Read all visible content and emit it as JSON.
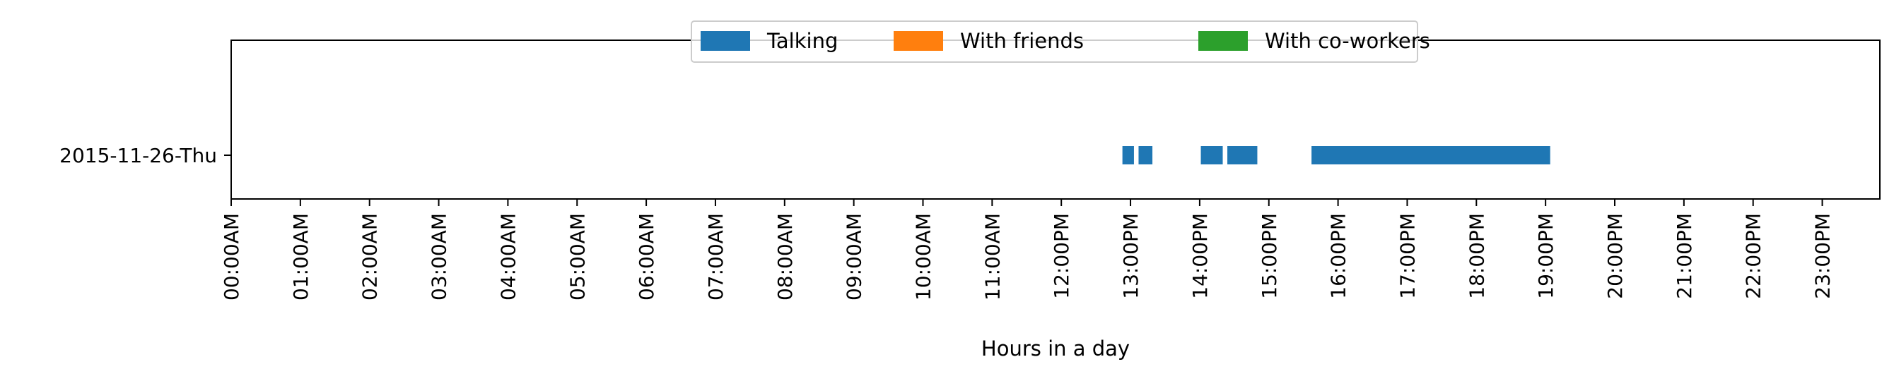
{
  "chart_data": {
    "type": "timeline",
    "title": "",
    "xlabel": "Hours in a day",
    "ylabel": "",
    "x_range_hours": [
      0,
      24
    ],
    "x_ticks": [
      "00:00AM",
      "01:00AM",
      "02:00AM",
      "03:00AM",
      "04:00AM",
      "05:00AM",
      "06:00AM",
      "07:00AM",
      "08:00AM",
      "09:00AM",
      "10:00AM",
      "11:00AM",
      "12:00PM",
      "13:00PM",
      "14:00PM",
      "15:00PM",
      "16:00PM",
      "17:00PM",
      "18:00PM",
      "19:00PM",
      "20:00PM",
      "21:00PM",
      "22:00PM",
      "23:00PM"
    ],
    "categories": [
      "2015-11-26-Thu"
    ],
    "legend_position": "top-center",
    "grid": false,
    "series": [
      {
        "name": "Talking",
        "color": "#1f77b4",
        "intervals": [
          {
            "day": "2015-11-26-Thu",
            "start": "12:53",
            "end": "13:03"
          },
          {
            "day": "2015-11-26-Thu",
            "start": "13:07",
            "end": "13:19"
          },
          {
            "day": "2015-11-26-Thu",
            "start": "14:01",
            "end": "14:20"
          },
          {
            "day": "2015-11-26-Thu",
            "start": "14:24",
            "end": "14:50"
          },
          {
            "day": "2015-11-26-Thu",
            "start": "15:37",
            "end": "19:04"
          }
        ]
      },
      {
        "name": "With friends",
        "color": "#ff7f0e",
        "intervals": []
      },
      {
        "name": "With co-workers",
        "color": "#2ca02c",
        "intervals": []
      }
    ]
  }
}
